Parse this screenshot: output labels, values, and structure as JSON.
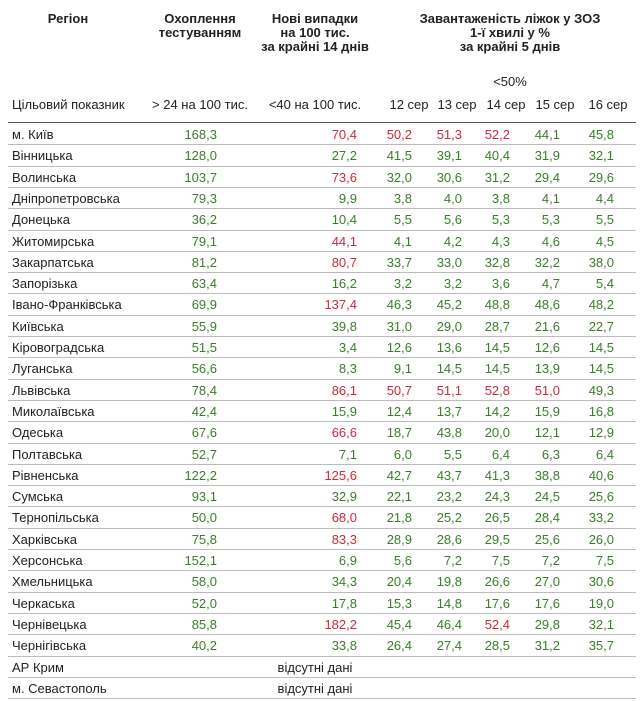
{
  "header": {
    "region": "Регіон",
    "testing": [
      "Охоплення",
      "тестуванням"
    ],
    "new_cases": [
      "Нові випадки",
      "на 100 тис.",
      "за крайні 14 днів"
    ],
    "beds": [
      "Завантаженість ліжок у ЗОЗ",
      "1-ї хвилі у %",
      "за крайні 5 днів"
    ],
    "beds_target": "<50%",
    "target_label": "Цільовий показник",
    "testing_target": "> 24 на 100 тис.",
    "cases_target": "<40 на 100 тис.",
    "dates": [
      "12 сер",
      "13 сер",
      "14 сер",
      "15 сер",
      "16 сер"
    ]
  },
  "colors": {
    "green": "#3a7d2c",
    "red": "#d0283c",
    "text": "#222222"
  },
  "rows": [
    {
      "region": "м. Київ",
      "testing": "168,3",
      "cases": "70,4",
      "beds": [
        "50,2",
        "51,3",
        "52,2",
        "44,1",
        "45,8"
      ]
    },
    {
      "region": "Вінницька",
      "testing": "128,0",
      "cases": "27,2",
      "beds": [
        "41,5",
        "39,1",
        "40,4",
        "31,9",
        "32,1"
      ]
    },
    {
      "region": "Волинська",
      "testing": "103,7",
      "cases": "73,6",
      "beds": [
        "32,0",
        "30,6",
        "31,2",
        "29,4",
        "29,6"
      ]
    },
    {
      "region": "Дніпропетровська",
      "testing": "79,3",
      "cases": "9,9",
      "beds": [
        "3,8",
        "4,0",
        "3,8",
        "4,1",
        "4,4"
      ]
    },
    {
      "region": "Донецька",
      "testing": "36,2",
      "cases": "10,4",
      "beds": [
        "5,5",
        "5,6",
        "5,3",
        "5,3",
        "5,5"
      ]
    },
    {
      "region": "Житомирська",
      "testing": "79,1",
      "cases": "44,1",
      "beds": [
        "4,1",
        "4,2",
        "4,3",
        "4,6",
        "4,5"
      ]
    },
    {
      "region": "Закарпатська",
      "testing": "81,2",
      "cases": "80,7",
      "beds": [
        "33,7",
        "33,0",
        "32,8",
        "32,2",
        "38,0"
      ]
    },
    {
      "region": "Запорізька",
      "testing": "63,4",
      "cases": "16,2",
      "beds": [
        "3,2",
        "3,2",
        "3,6",
        "4,7",
        "5,4"
      ]
    },
    {
      "region": "Івано-Франківська",
      "testing": "69,9",
      "cases": "137,4",
      "beds": [
        "46,3",
        "45,2",
        "48,8",
        "48,6",
        "48,2"
      ]
    },
    {
      "region": "Київська",
      "testing": "55,9",
      "cases": "39,8",
      "beds": [
        "31,0",
        "29,0",
        "28,7",
        "21,6",
        "22,7"
      ]
    },
    {
      "region": "Кіровоградська",
      "testing": "51,5",
      "cases": "3,4",
      "beds": [
        "12,6",
        "13,6",
        "14,5",
        "12,6",
        "14,5"
      ]
    },
    {
      "region": "Луганська",
      "testing": "56,6",
      "cases": "8,3",
      "beds": [
        "9,1",
        "14,5",
        "14,5",
        "13,9",
        "14,5"
      ]
    },
    {
      "region": "Львівська",
      "testing": "78,4",
      "cases": "86,1",
      "beds": [
        "50,7",
        "51,1",
        "52,8",
        "51,0",
        "49,3"
      ]
    },
    {
      "region": "Миколаївська",
      "testing": "42,4",
      "cases": "15,9",
      "beds": [
        "12,4",
        "13,7",
        "14,2",
        "15,9",
        "16,8"
      ]
    },
    {
      "region": "Одеська",
      "testing": "67,6",
      "cases": "66,6",
      "beds": [
        "18,7",
        "43,8",
        "20,0",
        "12,1",
        "12,9"
      ]
    },
    {
      "region": "Полтавська",
      "testing": "52,7",
      "cases": "7,1",
      "beds": [
        "6,0",
        "5,5",
        "6,4",
        "6,3",
        "6,4"
      ]
    },
    {
      "region": "Рівненська",
      "testing": "122,2",
      "cases": "125,6",
      "beds": [
        "42,7",
        "43,7",
        "41,3",
        "38,8",
        "40,6"
      ]
    },
    {
      "region": "Сумська",
      "testing": "93,1",
      "cases": "32,9",
      "beds": [
        "22,1",
        "23,2",
        "24,3",
        "24,5",
        "25,6"
      ]
    },
    {
      "region": "Тернопільська",
      "testing": "50,0",
      "cases": "68,0",
      "beds": [
        "21,8",
        "25,2",
        "26,5",
        "28,4",
        "33,2"
      ]
    },
    {
      "region": "Харківська",
      "testing": "75,8",
      "cases": "83,3",
      "beds": [
        "28,9",
        "28,6",
        "29,5",
        "25,6",
        "26,0"
      ]
    },
    {
      "region": "Херсонська",
      "testing": "152,1",
      "cases": "6,9",
      "beds": [
        "5,6",
        "7,2",
        "7,5",
        "7,2",
        "7,5"
      ]
    },
    {
      "region": "Хмельницька",
      "testing": "58,0",
      "cases": "34,3",
      "beds": [
        "20,4",
        "19,8",
        "26,6",
        "27,0",
        "30,6"
      ]
    },
    {
      "region": "Черкаська",
      "testing": "52,0",
      "cases": "17,8",
      "beds": [
        "15,3",
        "14,8",
        "17,6",
        "17,6",
        "19,0"
      ]
    },
    {
      "region": "Чернівецька",
      "testing": "85,8",
      "cases": "182,2",
      "beds": [
        "45,4",
        "46,4",
        "52,4",
        "29,8",
        "32,1"
      ]
    },
    {
      "region": "Чернігівська",
      "testing": "40,2",
      "cases": "33,8",
      "beds": [
        "26,4",
        "27,4",
        "28,5",
        "31,2",
        "35,7"
      ]
    },
    {
      "region": "АР Крим",
      "no_data": "відсутні дані"
    },
    {
      "region": "м. Севастополь",
      "no_data": "відсутні дані"
    }
  ]
}
